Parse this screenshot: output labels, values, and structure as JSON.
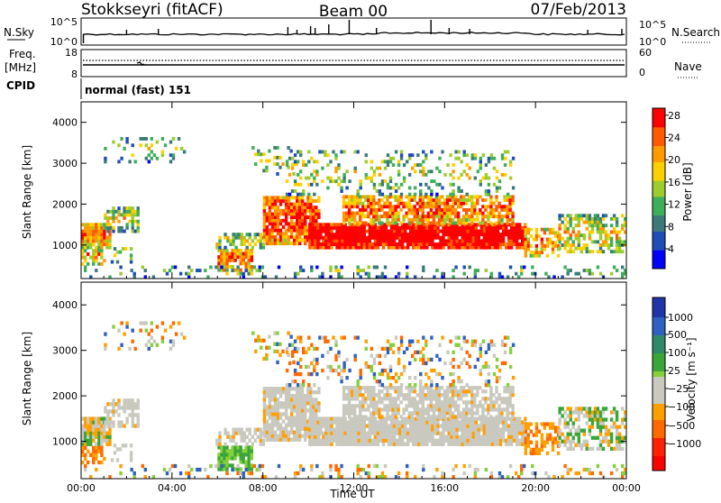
{
  "header": {
    "station": "Stokkseyri (fitACF)",
    "beam": "Beam 00",
    "date": "07/Feb/2013"
  },
  "strips": {
    "nsky": {
      "left_label": "N.Sky",
      "left_top": "10^5",
      "left_bottom": "10^0",
      "right_label": "N.Search",
      "right_top": "10^5",
      "right_bottom": "10^0"
    },
    "freq": {
      "left_label_1": "Freq.",
      "left_label_2": "[MHz]",
      "left_top": "18",
      "left_bottom": "8",
      "right_label": "Nave",
      "right_top": "60",
      "right_bottom": "0"
    },
    "cpid": {
      "label": "CPID",
      "mode": "normal (fast) 151"
    }
  },
  "chart_data": [
    {
      "type": "heatmap",
      "panel": "power",
      "ylabel": "Slant Range [km]",
      "ylim": [
        180,
        4500
      ],
      "yticks": [
        1000,
        2000,
        3000,
        4000
      ],
      "xlim": [
        0,
        24
      ],
      "xticks": [
        "00:00",
        "04:00",
        "08:00",
        "12:00",
        "16:00",
        "20:00",
        "00:00"
      ],
      "colorbar": {
        "label": "Power [dB]",
        "ticks": [
          "4",
          "8",
          "12",
          "16",
          "20",
          "24",
          "28"
        ],
        "colors": [
          "#0000ff",
          "#1f4db8",
          "#3c7a7a",
          "#3fae5a",
          "#9ccc2e",
          "#ffd000",
          "#ff9a00",
          "#ff5a00",
          "#ff0000"
        ]
      }
    },
    {
      "type": "heatmap",
      "panel": "velocity",
      "ylabel": "Slant Range [km]",
      "ylim": [
        180,
        4500
      ],
      "yticks": [
        1000,
        2000,
        3000,
        4000
      ],
      "xlim": [
        0,
        24
      ],
      "xticks": [
        "00:00",
        "04:00",
        "08:00",
        "12:00",
        "16:00",
        "20:00",
        "00:00"
      ],
      "xlabel": "Time UT",
      "colorbar": {
        "label": "Velocity [m s⁻¹]",
        "ticks": [
          "1000",
          "500",
          "100",
          "25",
          "−25",
          "−100",
          "−500",
          "−1000"
        ],
        "colors": [
          "#2036a8",
          "#2f62c0",
          "#2f8a6a",
          "#3aa63a",
          "#86d03a",
          "#c9c9c0",
          "#ffa000",
          "#ff6a00",
          "#ff2000",
          "#ff0000"
        ]
      }
    }
  ]
}
